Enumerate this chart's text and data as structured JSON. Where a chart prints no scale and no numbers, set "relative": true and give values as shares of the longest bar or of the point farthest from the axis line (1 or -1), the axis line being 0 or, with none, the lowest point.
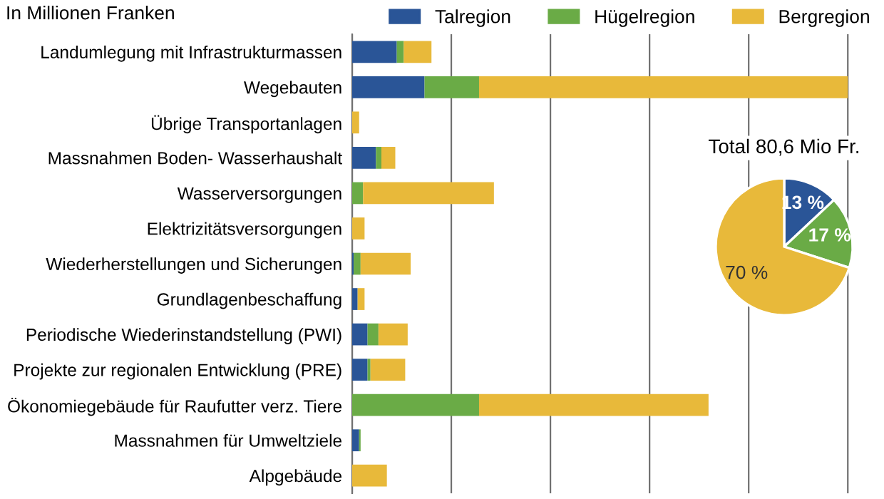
{
  "chart_data": [
    {
      "type": "bar",
      "orientation": "horizontal",
      "stacked": true,
      "relative": true,
      "title": "In Millionen Franken",
      "grid": "x",
      "legend": "top",
      "categories": [
        "Landumlegung mit Infrastrukturmassen",
        "Wegebauten",
        "Übrige Transportanlagen",
        "Massnahmen Boden- Wasserhaushalt",
        "Wasserversorgungen",
        "Elektrizitätsversorgungen",
        "Wiederherstellungen und Sicherungen",
        "Grundlagenbeschaffung",
        "Periodische Wiederinstandstellung (PWI)",
        "Projekte zur regionalen Entwicklung (PRE)",
        "Ökonomiegebäude für Raufutter verz. Tiere",
        "Massnahmen für Umweltziele",
        "Alpgebäude"
      ],
      "series": [
        {
          "name": "Talregion",
          "color": "#2a5597",
          "values": [
            0.09,
            0.146,
            0,
            0.048,
            0,
            0,
            0.003,
            0.011,
            0.031,
            0.031,
            0,
            0.014,
            0
          ]
        },
        {
          "name": "Hügelregion",
          "color": "#6aab46",
          "values": [
            0.014,
            0.11,
            0,
            0.011,
            0.022,
            0,
            0.014,
            0,
            0.022,
            0.006,
            0.256,
            0.003,
            0
          ]
        },
        {
          "name": "Bergregion",
          "color": "#e8b93a",
          "values": [
            0.056,
            0.744,
            0.014,
            0.028,
            0.264,
            0.025,
            0.101,
            0.014,
            0.059,
            0.07,
            0.463,
            0,
            0.07
          ]
        }
      ]
    },
    {
      "type": "pie",
      "title": "Total 80,6 Mio Fr.",
      "categories": [
        null,
        null,
        null
      ],
      "values": [
        13,
        17,
        70
      ],
      "colors": [
        "#2a5597",
        "#6aab46",
        "#e8b93a"
      ],
      "value_labels": [
        "13 %",
        "17 %",
        "70 %"
      ]
    }
  ]
}
